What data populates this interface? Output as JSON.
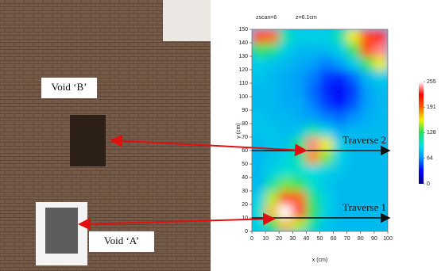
{
  "photo": {
    "labels": [
      "Void ‘B’",
      "Void ‘A’"
    ]
  },
  "chart_data": {
    "type": "heatmap",
    "header": [
      "zscan=6",
      "z=6.1cm"
    ],
    "xlabel": "x (cm)",
    "ylabel": "y (cm)",
    "xlim": [
      0,
      100
    ],
    "ylim": [
      0,
      150
    ],
    "xticks": [
      0,
      10,
      20,
      30,
      40,
      50,
      60,
      70,
      80,
      90,
      100
    ],
    "yticks": [
      0,
      10,
      20,
      30,
      40,
      50,
      60,
      70,
      80,
      90,
      100,
      110,
      120,
      130,
      140,
      150
    ],
    "x": [
      5,
      15,
      25,
      35,
      45,
      55,
      65,
      75,
      85,
      95
    ],
    "y": [
      5,
      15,
      25,
      35,
      45,
      55,
      65,
      75,
      85,
      95,
      105,
      115,
      125,
      135,
      145
    ],
    "z": [
      [
        90,
        130,
        170,
        150,
        110,
        85,
        80,
        80,
        80,
        80
      ],
      [
        100,
        170,
        255,
        230,
        130,
        90,
        80,
        80,
        80,
        80
      ],
      [
        90,
        150,
        200,
        190,
        120,
        90,
        80,
        80,
        80,
        80
      ],
      [
        80,
        110,
        140,
        130,
        100,
        85,
        80,
        80,
        80,
        80
      ],
      [
        80,
        90,
        100,
        100,
        95,
        90,
        85,
        80,
        80,
        80
      ],
      [
        80,
        85,
        90,
        110,
        180,
        140,
        90,
        80,
        80,
        80
      ],
      [
        80,
        85,
        85,
        120,
        240,
        160,
        90,
        80,
        80,
        80
      ],
      [
        85,
        85,
        80,
        85,
        110,
        90,
        75,
        80,
        80,
        80
      ],
      [
        85,
        80,
        80,
        75,
        70,
        60,
        55,
        65,
        75,
        80
      ],
      [
        80,
        80,
        75,
        75,
        60,
        45,
        35,
        50,
        70,
        80
      ],
      [
        80,
        80,
        75,
        70,
        55,
        40,
        30,
        45,
        70,
        80
      ],
      [
        85,
        80,
        75,
        70,
        60,
        45,
        40,
        55,
        80,
        90
      ],
      [
        90,
        85,
        80,
        75,
        70,
        60,
        70,
        90,
        130,
        160
      ],
      [
        130,
        120,
        90,
        80,
        80,
        80,
        90,
        130,
        200,
        240
      ],
      [
        200,
        190,
        110,
        90,
        90,
        90,
        110,
        160,
        200,
        220
      ]
    ],
    "colormap": [
      "#00008b",
      "#0000ff",
      "#0090ff",
      "#00e0e0",
      "#20e060",
      "#f0f000",
      "#ff6000",
      "#ff0000",
      "#ffffff"
    ],
    "clim": [
      0,
      255
    ],
    "cticks": [
      255,
      191,
      128,
      64,
      0
    ],
    "traverses": [
      {
        "label": "Traverse 2",
        "y": 60
      },
      {
        "label": "Traverse 1",
        "y": 10
      }
    ]
  }
}
